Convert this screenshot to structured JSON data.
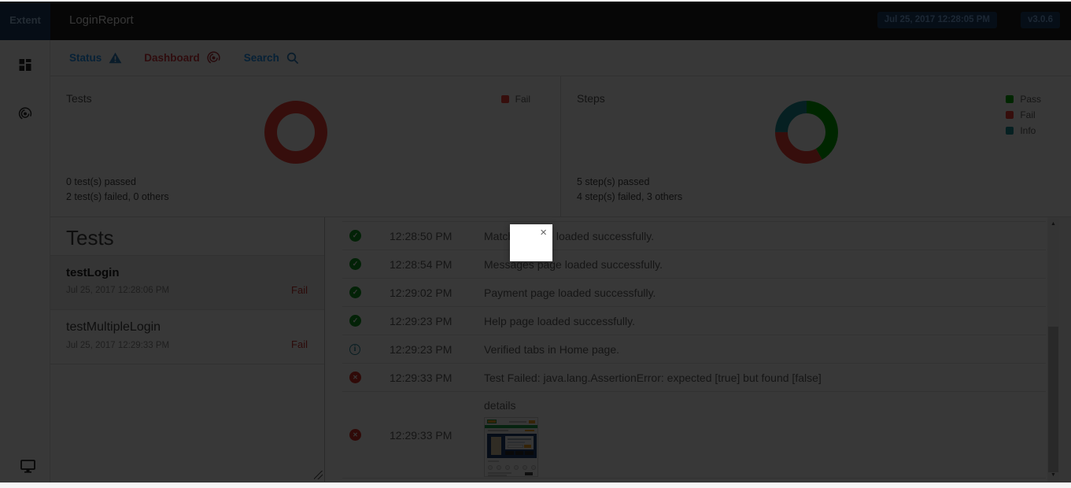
{
  "navbar": {
    "brand": "Extent",
    "title": "LoginReport",
    "timestamp": "Jul 25, 2017 12:28:05 PM",
    "version": "v3.0.6"
  },
  "subnav": {
    "status_label": "Status",
    "dashboard_label": "Dashboard",
    "search_label": "Search"
  },
  "tests_panel": {
    "title": "Tests",
    "legend": [
      {
        "label": "Fail",
        "color": "#f44336"
      }
    ],
    "passed_text": "0 test(s) passed",
    "failed_text": "2 test(s) failed, 0 others"
  },
  "steps_panel": {
    "title": "Steps",
    "legend": [
      {
        "label": "Pass",
        "color": "#00af00"
      },
      {
        "label": "Fail",
        "color": "#f44336"
      },
      {
        "label": "Info",
        "color": "#1e9099"
      }
    ],
    "passed_text": "5 step(s) passed",
    "failed_text": "4 step(s) failed, 3 others"
  },
  "chart_data": [
    {
      "type": "pie",
      "title": "Tests",
      "labels": [
        "Fail"
      ],
      "values": [
        2
      ],
      "colors": [
        "#f44336"
      ],
      "inner_radius_ratio": 0.6,
      "legend_position": "top-right"
    },
    {
      "type": "pie",
      "title": "Steps",
      "labels": [
        "Pass",
        "Fail",
        "Info"
      ],
      "values": [
        5,
        4,
        3
      ],
      "colors": [
        "#00af00",
        "#f44336",
        "#1e9099"
      ],
      "inner_radius_ratio": 0.6,
      "legend_position": "top-right"
    }
  ],
  "test_list": {
    "heading": "Tests",
    "items": [
      {
        "name": "testLogin",
        "date": "Jul 25, 2017 12:28:06 PM",
        "status": "Fail"
      },
      {
        "name": "testMultipleLogin",
        "date": "Jul 25, 2017 12:29:33 PM",
        "status": "Fail"
      }
    ]
  },
  "log": {
    "rows": [
      {
        "status": "pass",
        "time": "12:28:50 PM",
        "message": "Matches page loaded successfully."
      },
      {
        "status": "pass",
        "time": "12:28:54 PM",
        "message": "Messages page loaded successfully."
      },
      {
        "status": "pass",
        "time": "12:29:02 PM",
        "message": "Payment page loaded successfully."
      },
      {
        "status": "pass",
        "time": "12:29:23 PM",
        "message": "Help page loaded successfully."
      },
      {
        "status": "info",
        "time": "12:29:23 PM",
        "message": "Verified tabs in Home page."
      },
      {
        "status": "fail",
        "time": "12:29:33 PM",
        "message": "Test Failed: java.lang.AssertionError: expected [true] but found [false]"
      },
      {
        "status": "fail",
        "time": "12:29:33 PM",
        "message": "details"
      }
    ]
  },
  "lightbox": {
    "close_icon": "×"
  },
  "colors": {
    "accent_blue": "#2196f3",
    "accent_red": "#d5393f",
    "pass_green": "#00af00",
    "fail_red": "#f44336",
    "info_teal": "#1e9099",
    "navbar_bg": "#1b1b1b",
    "brand_bg": "#1d3e66"
  }
}
